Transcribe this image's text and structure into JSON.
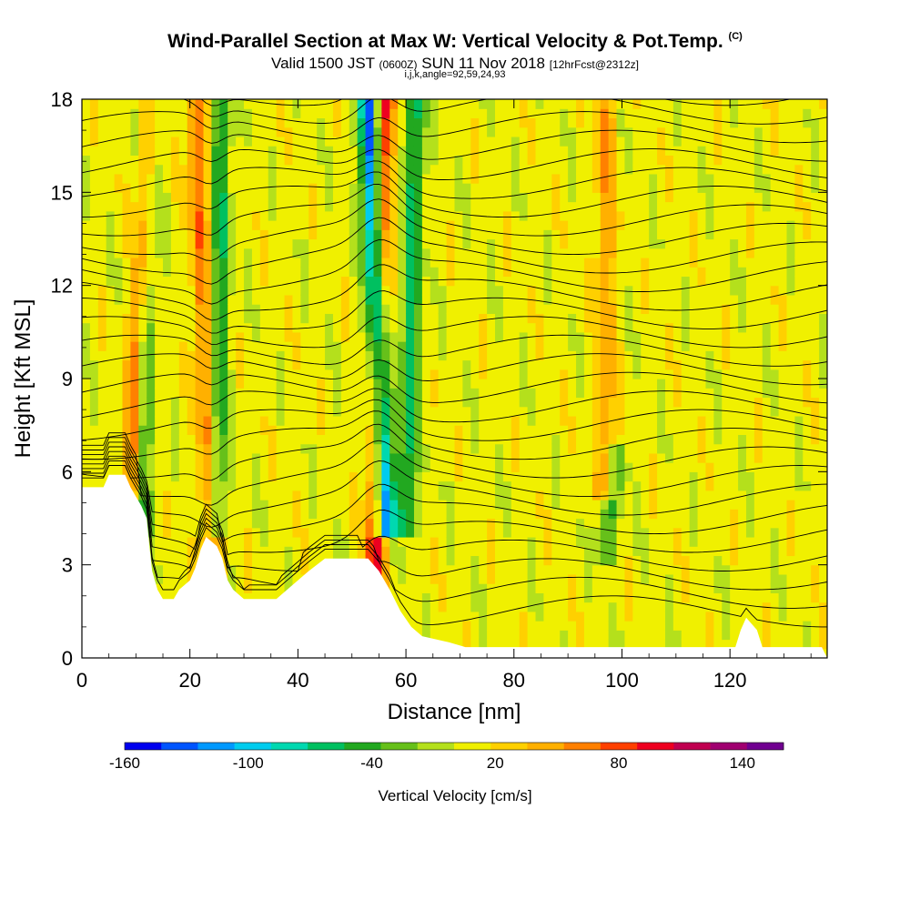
{
  "title": {
    "main": "Wind-Parallel Section at Max W: Vertical Velocity & Pot.Temp.",
    "copyright": "(C)",
    "valid_prefix": "Valid 1500 JST",
    "valid_utc": "(0600Z)",
    "valid_date": "SUN 11 Nov 2018",
    "forecast": "[12hrFcst@2312z]",
    "indices": "i,j,k,angle=92,59,24,93"
  },
  "chart_data": {
    "type": "heatmap",
    "xlabel": "Distance [nm]",
    "ylabel": "Height [Kft MSL]",
    "xlim": [
      0,
      138
    ],
    "ylim": [
      0,
      18
    ],
    "x_ticks": [
      "0",
      "20",
      "40",
      "60",
      "80",
      "100",
      "120"
    ],
    "y_ticks": [
      "0",
      "3",
      "6",
      "9",
      "12",
      "15",
      "18"
    ],
    "x_tick_values": [
      0,
      20,
      40,
      60,
      80,
      100,
      120
    ],
    "y_tick_values": [
      0,
      3,
      6,
      9,
      12,
      15,
      18
    ],
    "colorbar": {
      "title": "Vertical Velocity [cm/s]",
      "labels": [
        "-160",
        "-100",
        "-40",
        "20",
        "80",
        "140"
      ],
      "label_values": [
        -160,
        -100,
        -40,
        20,
        80,
        140
      ],
      "range": [
        -160,
        160
      ],
      "colors": [
        "#0000ee",
        "#0055ff",
        "#0099ff",
        "#00ccee",
        "#00d8b0",
        "#00c060",
        "#22a820",
        "#66c01a",
        "#b4e01c",
        "#f0f000",
        "#ffd000",
        "#ffb000",
        "#ff8000",
        "#ff4000",
        "#ee0020",
        "#c00050",
        "#a00070",
        "#700090"
      ]
    },
    "terrain_kft": [
      [
        0,
        5.5
      ],
      [
        4,
        5.5
      ],
      [
        5,
        5.9
      ],
      [
        8,
        5.9
      ],
      [
        9,
        5.5
      ],
      [
        10,
        5.2
      ],
      [
        11,
        4.9
      ],
      [
        12,
        4.5
      ],
      [
        12.5,
        3.6
      ],
      [
        13,
        2.8
      ],
      [
        14,
        2.2
      ],
      [
        15,
        1.9
      ],
      [
        17,
        1.9
      ],
      [
        18,
        2.2
      ],
      [
        20,
        2.5
      ],
      [
        21,
        2.9
      ],
      [
        22,
        3.5
      ],
      [
        23,
        3.9
      ],
      [
        25,
        3.6
      ],
      [
        26,
        3.2
      ],
      [
        27,
        2.5
      ],
      [
        28,
        2.2
      ],
      [
        30,
        1.9
      ],
      [
        36,
        1.9
      ],
      [
        38,
        2.2
      ],
      [
        40,
        2.5
      ],
      [
        42,
        2.8
      ],
      [
        45,
        3.2
      ],
      [
        53,
        3.2
      ],
      [
        55,
        2.8
      ],
      [
        57,
        2.2
      ],
      [
        59,
        1.5
      ],
      [
        61,
        1.0
      ],
      [
        63,
        0.7
      ],
      [
        68,
        0.5
      ],
      [
        71,
        0.35
      ],
      [
        121,
        0.35
      ],
      [
        122,
        0.9
      ],
      [
        123,
        1.3
      ],
      [
        125,
        0.9
      ],
      [
        126,
        0.35
      ],
      [
        137,
        0.35
      ],
      [
        138,
        0.0
      ]
    ],
    "updraft_bands": [
      {
        "x_base": 9,
        "x_top": 13,
        "z_min": 6,
        "z_max": 18,
        "w": 70
      },
      {
        "x_base": 24,
        "x_top": 21,
        "z_min": 3,
        "z_max": 18,
        "w": 60
      },
      {
        "x_base": 54,
        "x_top": 56,
        "z_min": 2,
        "z_max": 18,
        "w": 90
      },
      {
        "x_base": 97,
        "x_top": 97,
        "z_min": 6,
        "z_max": 18,
        "w": 45
      }
    ],
    "downdraft_bands": [
      {
        "x_base": 11,
        "x_top": 13,
        "z_min": 5,
        "z_max": 18,
        "w": -55
      },
      {
        "x_base": 25,
        "x_top": 26,
        "z_min": 5,
        "z_max": 18,
        "w": -60
      },
      {
        "x_base": 56,
        "x_top": 53,
        "z_min": 5,
        "z_max": 18,
        "w": -150
      },
      {
        "x_base": 60,
        "x_top": 62,
        "z_min": 5,
        "z_max": 18,
        "w": -70
      },
      {
        "x_base": 97,
        "x_top": 99,
        "z_min": 4,
        "z_max": 6,
        "w": -45
      }
    ],
    "contour_spacing_note": "Potential temperature isentropes; labels not legible"
  }
}
